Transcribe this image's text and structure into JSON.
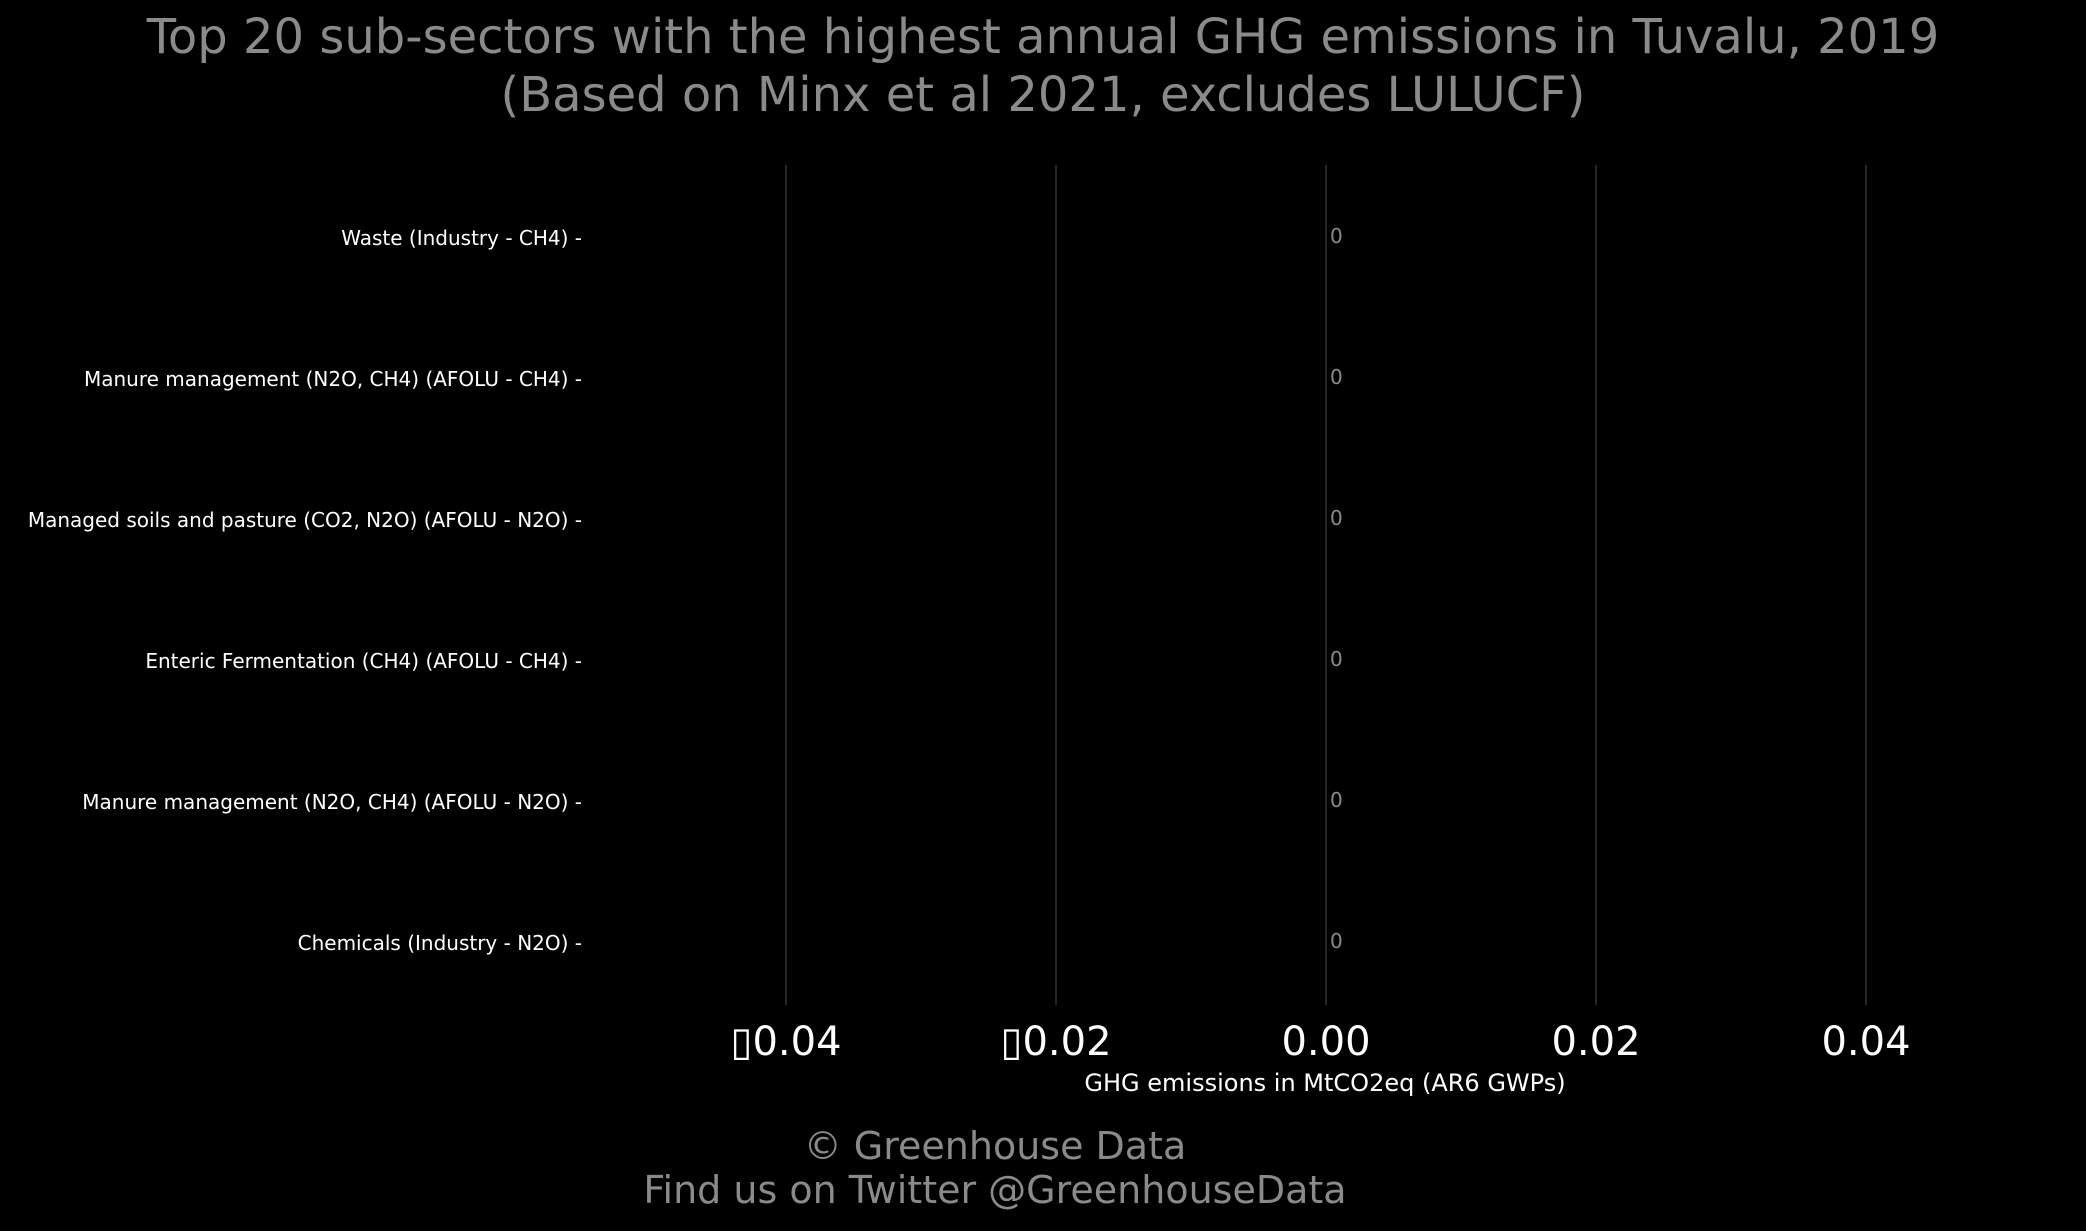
{
  "chart_data": {
    "type": "bar",
    "orientation": "horizontal",
    "title": "Top 20 sub-sectors with the highest annual GHG emissions in Tuvalu, 2019",
    "subtitle": "(Based on Minx et al 2021, excludes LULUCF)",
    "xlabel": "GHG emissions in MtCO2eq (AR6 GWPs)",
    "ylabel": "",
    "categories": [
      "Waste (Industry - CH4)",
      "Manure management (N2O, CH4) (AFOLU - CH4)",
      "Managed soils and pasture (CO2, N2O) (AFOLU - N2O)",
      "Enteric Fermentation (CH4) (AFOLU - CH4)",
      "Manure management (N2O, CH4) (AFOLU - N2O)",
      "Chemicals (Industry - N2O)"
    ],
    "values": [
      0,
      0,
      0,
      0,
      0,
      0
    ],
    "data_labels": [
      "0",
      "0",
      "0",
      "0",
      "0",
      "0"
    ],
    "xlim": [
      -0.05,
      0.05
    ],
    "xticks": [
      -0.04,
      -0.02,
      0.0,
      0.02,
      0.04
    ],
    "xtick_labels": [
      "▯0.04",
      "▯0.02",
      "0.00",
      "0.02",
      "0.04"
    ],
    "grid": "vertical",
    "colors": {
      "background": "#000000",
      "grid": "#333333",
      "text": "#ffffff",
      "muted": "#8a8a8a"
    }
  },
  "footer": {
    "line1": "© Greenhouse Data",
    "line2": "Find us on Twitter @GreenhouseData"
  }
}
